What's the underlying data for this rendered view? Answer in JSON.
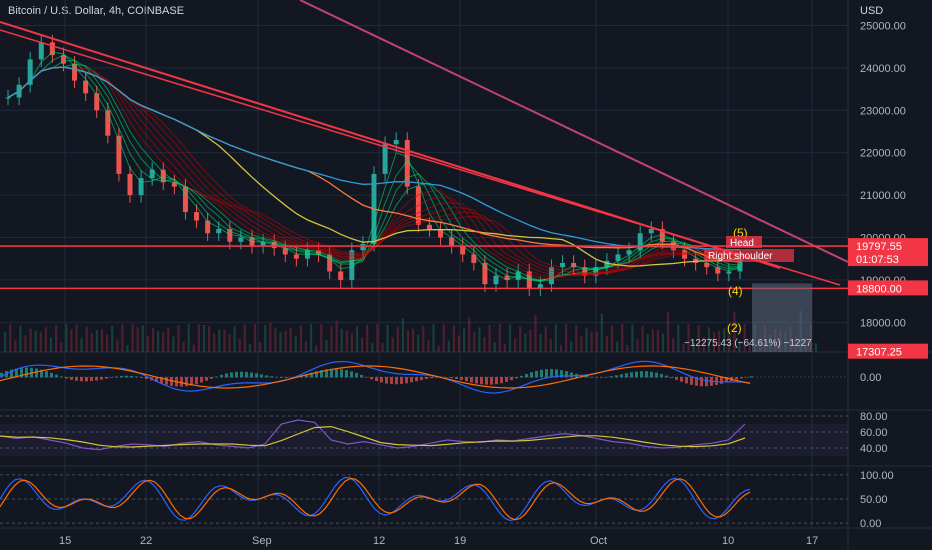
{
  "header": {
    "title": "Bitcoin / U.S. Dollar, 4h, COINBASE",
    "currency": "USD"
  },
  "colors": {
    "background": "#131722",
    "grid": "#1f2a3a",
    "text": "#b2b5be",
    "trendline": "#f23645",
    "upper_trendline": "#c2446e",
    "ma_blue": "#2e9bd6",
    "ma_yellow": "#d4c439",
    "ma_orange": "#f77c3a",
    "ribbon_green": "#00e676",
    "ribbon_red": "#d50000",
    "wave_label": "#f5d90a",
    "price_badge": "#f23645",
    "rsi_line": "#7e57c2",
    "stoch_k": "#2962ff",
    "stoch_d": "#ff6d00"
  },
  "chart_data": [
    {
      "type": "line",
      "panel": "price",
      "x_tick_labels": [
        "15",
        "22",
        "Sep",
        "12",
        "19",
        "Oct",
        "10",
        "17"
      ],
      "y_tick_labels": [
        "25000.00",
        "24000.00",
        "23000.00",
        "22000.00",
        "21000.00",
        "20000.00",
        "19000.00",
        "18000.00"
      ],
      "ylim": [
        17300,
        25600
      ],
      "series": [
        {
          "role": "close",
          "values": [
            23300,
            23600,
            24200,
            24600,
            24300,
            24100,
            23700,
            23400,
            23000,
            22400,
            21500,
            21000,
            21400,
            21600,
            21300,
            21200,
            20600,
            20400,
            20100,
            20200,
            19900,
            20000,
            19800,
            19900,
            19750,
            19600,
            19500,
            19700,
            19600,
            19200,
            19000,
            19700,
            19850,
            21500,
            22200,
            22300,
            21200,
            20300,
            20200,
            20000,
            19800,
            19600,
            19400,
            18900,
            19100,
            19000,
            19200,
            18800,
            18900,
            19300,
            19400,
            19300,
            19100,
            19300,
            19450,
            19600,
            19700,
            20100,
            20200,
            19900,
            19700,
            19500,
            19400,
            19300,
            19150,
            19200,
            19500
          ]
        }
      ],
      "horizontal_levels": [
        19797.55,
        18800.0
      ],
      "price_badges": [
        "19797.55",
        "01:07:53",
        "18800.00",
        "17307.25"
      ],
      "annotations": [
        "(5)",
        "Head",
        "Right shoulder",
        "(4)",
        "(2)",
        "−12275.43 (−64.61%) −1227"
      ]
    },
    {
      "type": "line",
      "panel": "macd",
      "y_tick_labels": [
        "0.00"
      ]
    },
    {
      "type": "line",
      "panel": "rsi",
      "y_tick_labels": [
        "80.00",
        "60.00",
        "40.00"
      ],
      "ylim": [
        20,
        85
      ],
      "series": [
        {
          "values": [
            55,
            52,
            54,
            50,
            46,
            40,
            38,
            42,
            45,
            44,
            42,
            46,
            48,
            44,
            42,
            40,
            45,
            70,
            75,
            72,
            50,
            45,
            48,
            44,
            40,
            42,
            46,
            50,
            48,
            47,
            50,
            49,
            52,
            55,
            58,
            56,
            52,
            48,
            46,
            42,
            40,
            41,
            44,
            46,
            50,
            70
          ]
        }
      ]
    },
    {
      "type": "line",
      "panel": "stochastic",
      "y_tick_labels": [
        "100.00",
        "50.00",
        "0.00"
      ],
      "ylim": [
        -10,
        110
      ]
    }
  ]
}
